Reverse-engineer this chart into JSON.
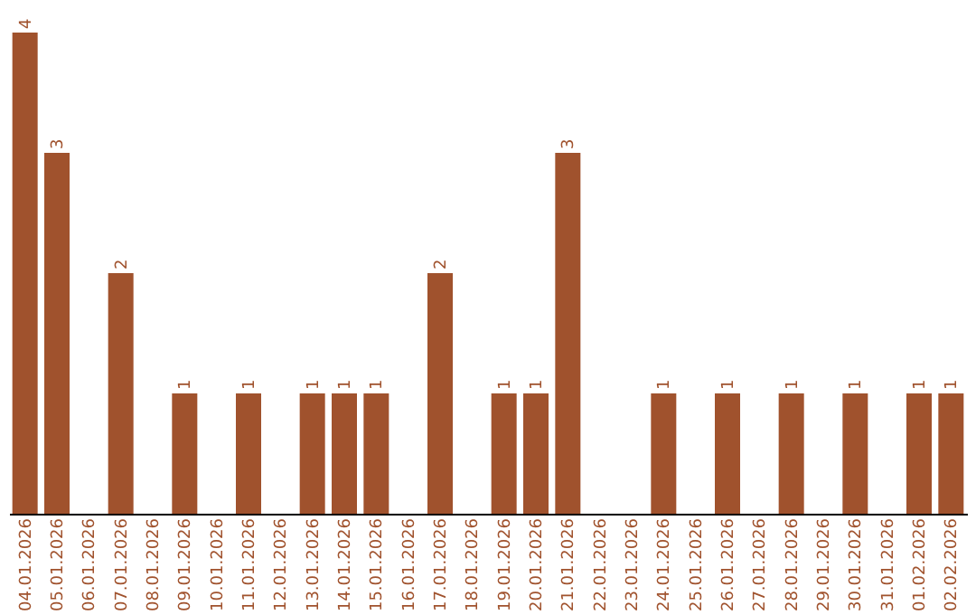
{
  "chart_data": {
    "type": "bar",
    "color": "#a0522d",
    "categories": [
      "04.01.2026",
      "05.01.2026",
      "06.01.2026",
      "07.01.2026",
      "08.01.2026",
      "09.01.2026",
      "10.01.2026",
      "11.01.2026",
      "12.01.2026",
      "13.01.2026",
      "14.01.2026",
      "15.01.2026",
      "16.01.2026",
      "17.01.2026",
      "18.01.2026",
      "19.01.2026",
      "20.01.2026",
      "21.01.2026",
      "22.01.2026",
      "23.01.2026",
      "24.01.2026",
      "25.01.2026",
      "26.01.2026",
      "27.01.2026",
      "28.01.2026",
      "29.01.2026",
      "30.01.2026",
      "31.01.2026",
      "01.02.2026",
      "02.02.2026"
    ],
    "values": [
      4,
      3,
      0,
      2,
      0,
      1,
      0,
      1,
      0,
      1,
      1,
      1,
      0,
      2,
      0,
      1,
      1,
      3,
      0,
      0,
      1,
      0,
      1,
      0,
      1,
      0,
      1,
      0,
      1,
      1
    ],
    "value_labels": [
      "4",
      "3",
      null,
      "2",
      null,
      "1",
      null,
      "1",
      null,
      "1",
      "1",
      "1",
      null,
      "2",
      null,
      "1",
      "1",
      "3",
      null,
      null,
      "1",
      null,
      "1",
      null,
      "1",
      null,
      "1",
      null,
      "1",
      "1"
    ],
    "tick_labels": "x"
  }
}
